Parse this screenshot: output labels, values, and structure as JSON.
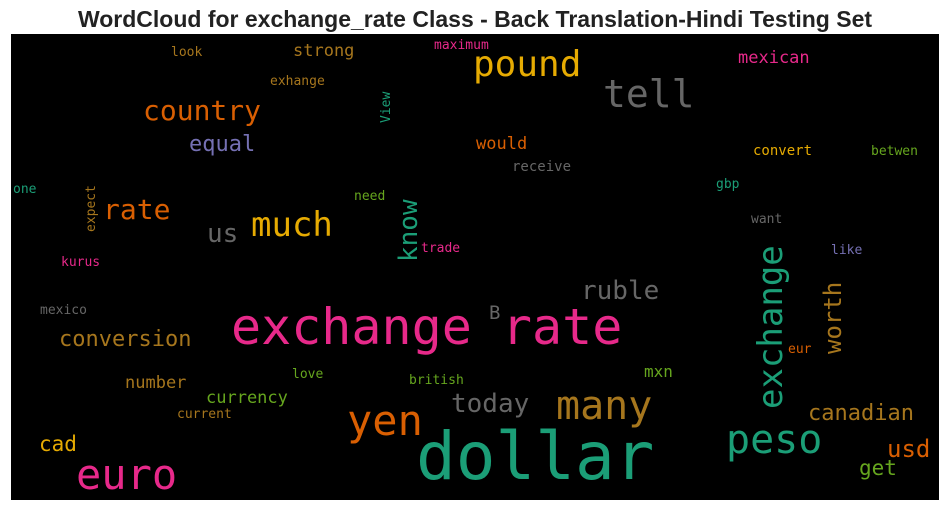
{
  "chart_data": {
    "type": "wordcloud",
    "title": "WordCloud for exchange_rate Class - Back Translation-Hindi Testing Set",
    "background": "#000000",
    "colormap": [
      "#1b9e77",
      "#d95f02",
      "#7570b3",
      "#e7298a",
      "#66a61e",
      "#e6ab02",
      "#a6761d",
      "#666666"
    ],
    "words": [
      {
        "text": "exchange rate",
        "color": "#e7298a"
      },
      {
        "text": "dollar",
        "color": "#1b9e77"
      },
      {
        "text": "euro",
        "color": "#e7298a"
      },
      {
        "text": "yen",
        "color": "#d95f02"
      },
      {
        "text": "peso",
        "color": "#1b9e77"
      },
      {
        "text": "many",
        "color": "#a6761d"
      },
      {
        "text": "exchange",
        "color": "#1b9e77"
      },
      {
        "text": "tell",
        "color": "#666666"
      },
      {
        "text": "pound",
        "color": "#e6ab02"
      },
      {
        "text": "much",
        "color": "#e6ab02"
      },
      {
        "text": "country",
        "color": "#d95f02"
      },
      {
        "text": "rate",
        "color": "#d95f02"
      },
      {
        "text": "know",
        "color": "#1b9e77"
      },
      {
        "text": "ruble",
        "color": "#666666"
      },
      {
        "text": "worth",
        "color": "#a6761d"
      },
      {
        "text": "today",
        "color": "#666666"
      },
      {
        "text": "us",
        "color": "#666666"
      },
      {
        "text": "conversion",
        "color": "#a6761d"
      },
      {
        "text": "canadian",
        "color": "#a6761d"
      },
      {
        "text": "usd",
        "color": "#d95f02"
      },
      {
        "text": "equal",
        "color": "#7570b3"
      },
      {
        "text": "cad",
        "color": "#e6ab02"
      },
      {
        "text": "get",
        "color": "#66a61e"
      },
      {
        "text": "mexican",
        "color": "#e7298a"
      },
      {
        "text": "strong",
        "color": "#a6761d"
      },
      {
        "text": "currency",
        "color": "#66a61e"
      },
      {
        "text": "number",
        "color": "#a6761d"
      },
      {
        "text": "would",
        "color": "#d95f02"
      },
      {
        "text": "mxn",
        "color": "#66a61e"
      },
      {
        "text": "B",
        "color": "#666666"
      },
      {
        "text": "receive",
        "color": "#666666"
      },
      {
        "text": "convert",
        "color": "#e6ab02"
      },
      {
        "text": "betwen",
        "color": "#66a61e"
      },
      {
        "text": "gbp",
        "color": "#1b9e77"
      },
      {
        "text": "want",
        "color": "#666666"
      },
      {
        "text": "like",
        "color": "#7570b3"
      },
      {
        "text": "eur",
        "color": "#d95f02"
      },
      {
        "text": "look",
        "color": "#a6761d"
      },
      {
        "text": "maximum",
        "color": "#e7298a"
      },
      {
        "text": "exhange",
        "color": "#a6761d"
      },
      {
        "text": "View",
        "color": "#1b9e77"
      },
      {
        "text": "one",
        "color": "#1b9e77"
      },
      {
        "text": "expect",
        "color": "#a6761d"
      },
      {
        "text": "need",
        "color": "#66a61e"
      },
      {
        "text": "trade",
        "color": "#e7298a"
      },
      {
        "text": "kurus",
        "color": "#e7298a"
      },
      {
        "text": "mexico",
        "color": "#666666"
      },
      {
        "text": "love",
        "color": "#66a61e"
      },
      {
        "text": "british",
        "color": "#66a61e"
      },
      {
        "text": "current",
        "color": "#a6761d"
      }
    ]
  }
}
